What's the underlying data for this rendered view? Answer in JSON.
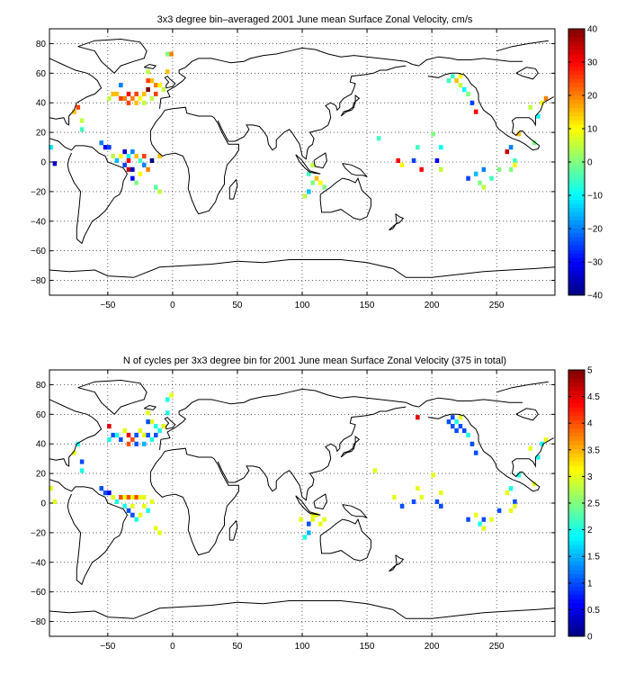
{
  "panels": [
    {
      "title": "3x3 degree bin–averaged 2001 June mean Surface Zonal Velocity, cm/s",
      "chart_data": {
        "type": "heatmap",
        "xlim": [
          -95,
          295
        ],
        "ylim": [
          -90,
          90
        ],
        "xticks": [
          -50,
          0,
          50,
          100,
          150,
          200,
          250
        ],
        "yticks": [
          -80,
          -60,
          -40,
          -20,
          0,
          20,
          40,
          60,
          80
        ],
        "grid": true,
        "grid_style": "dotted",
        "colorbar": {
          "min": -40,
          "max": 40,
          "ticks": [
            -40,
            -30,
            -20,
            -10,
            0,
            10,
            20,
            30,
            40
          ]
        },
        "cells": [
          [
            -94,
            10,
            -12
          ],
          [
            -91,
            -1,
            -35
          ],
          [
            -73,
            37,
            25
          ],
          [
            -76,
            34,
            15
          ],
          [
            -70,
            28,
            5
          ],
          [
            -70,
            22,
            -5
          ],
          [
            -55,
            13,
            -20
          ],
          [
            -52,
            10,
            -30
          ],
          [
            -49,
            10,
            -25
          ],
          [
            -46,
            4,
            5
          ],
          [
            -43,
            1,
            -15
          ],
          [
            -40,
            4,
            10
          ],
          [
            -37,
            7,
            -35
          ],
          [
            -34,
            4,
            -10
          ],
          [
            -34,
            1,
            30
          ],
          [
            -31,
            7,
            -20
          ],
          [
            -28,
            4,
            15
          ],
          [
            -25,
            1,
            -5
          ],
          [
            -22,
            4,
            25
          ],
          [
            -37,
            -2,
            -25
          ],
          [
            -34,
            -5,
            35
          ],
          [
            -31,
            -5,
            -35
          ],
          [
            -31,
            -11,
            -30
          ],
          [
            -28,
            -14,
            0
          ],
          [
            -25,
            -8,
            10
          ],
          [
            -22,
            -2,
            -20
          ],
          [
            -19,
            -5,
            20
          ],
          [
            -16,
            1,
            -40
          ],
          [
            -13,
            -17,
            -3
          ],
          [
            -10,
            -20,
            5
          ],
          [
            -10,
            4,
            15
          ],
          [
            -46,
            46,
            15
          ],
          [
            -49,
            43,
            5
          ],
          [
            -43,
            46,
            15
          ],
          [
            -40,
            43,
            25
          ],
          [
            -37,
            43,
            20
          ],
          [
            -34,
            46,
            30
          ],
          [
            -34,
            40,
            25
          ],
          [
            -31,
            43,
            20
          ],
          [
            -28,
            46,
            25
          ],
          [
            -28,
            40,
            15
          ],
          [
            -25,
            43,
            10
          ],
          [
            -22,
            46,
            15
          ],
          [
            -22,
            40,
            5
          ],
          [
            -19,
            49,
            40
          ],
          [
            -16,
            43,
            5
          ],
          [
            -13,
            46,
            25
          ],
          [
            -13,
            52,
            20
          ],
          [
            -16,
            55,
            15
          ],
          [
            -10,
            52,
            10
          ],
          [
            -7,
            49,
            5
          ],
          [
            -4,
            61,
            15
          ],
          [
            -1,
            73,
            20
          ],
          [
            -4,
            73,
            0
          ],
          [
            -19,
            55,
            25
          ],
          [
            -19,
            61,
            5
          ],
          [
            -40,
            52,
            -20
          ],
          [
            108,
            -2,
            5
          ],
          [
            105,
            -8,
            -5
          ],
          [
            108,
            -14,
            0
          ],
          [
            105,
            -20,
            -15
          ],
          [
            102,
            -23,
            5
          ],
          [
            114,
            -14,
            10
          ],
          [
            117,
            -17,
            0
          ],
          [
            111,
            -11,
            15
          ],
          [
            159,
            16,
            -5
          ],
          [
            174,
            1,
            30
          ],
          [
            177,
            -2,
            10
          ],
          [
            186,
            1,
            -25
          ],
          [
            189,
            10,
            -5
          ],
          [
            192,
            -5,
            30
          ],
          [
            204,
            1,
            -30
          ],
          [
            207,
            10,
            -10
          ],
          [
            201,
            19,
            0
          ],
          [
            207,
            -5,
            5
          ],
          [
            216,
            58,
            -5
          ],
          [
            219,
            55,
            15
          ],
          [
            222,
            52,
            5
          ],
          [
            225,
            49,
            -10
          ],
          [
            228,
            46,
            0
          ],
          [
            222,
            58,
            10
          ],
          [
            213,
            55,
            -5
          ],
          [
            231,
            40,
            -25
          ],
          [
            234,
            34,
            30
          ],
          [
            228,
            -11,
            -25
          ],
          [
            234,
            -8,
            -15
          ],
          [
            237,
            -14,
            0
          ],
          [
            240,
            -5,
            -20
          ],
          [
            240,
            -17,
            5
          ],
          [
            246,
            -11,
            -5
          ],
          [
            252,
            -5,
            0
          ],
          [
            258,
            7,
            35
          ],
          [
            261,
            10,
            -20
          ],
          [
            264,
            1,
            -5
          ],
          [
            264,
            -2,
            10
          ],
          [
            261,
            -5,
            0
          ],
          [
            276,
            37,
            5
          ],
          [
            282,
            31,
            -10
          ],
          [
            285,
            40,
            10
          ],
          [
            288,
            43,
            20
          ],
          [
            279,
            13,
            0
          ],
          [
            267,
            19,
            15
          ]
        ]
      }
    },
    {
      "title": "N of cycles per 3x3 degree bin for 2001 June mean Surface Zonal Velocity (375 in total)",
      "chart_data": {
        "type": "heatmap",
        "xlim": [
          -95,
          295
        ],
        "ylim": [
          -90,
          90
        ],
        "xticks": [
          -50,
          0,
          50,
          100,
          150,
          200,
          250
        ],
        "yticks": [
          -80,
          -60,
          -40,
          -20,
          0,
          20,
          40,
          60,
          80
        ],
        "grid": true,
        "grid_style": "dotted",
        "colorbar": {
          "min": 0,
          "max": 5,
          "ticks": [
            0,
            0.5,
            1,
            1.5,
            2,
            2.5,
            3,
            3.5,
            4,
            4.5,
            5
          ]
        },
        "cells": [
          [
            -94,
            10,
            3
          ],
          [
            -91,
            1,
            3
          ],
          [
            -73,
            40,
            2
          ],
          [
            -76,
            34,
            3
          ],
          [
            -70,
            28,
            1
          ],
          [
            -70,
            22,
            2
          ],
          [
            -55,
            10,
            1
          ],
          [
            -52,
            7,
            1
          ],
          [
            -49,
            7,
            0.5
          ],
          [
            -46,
            4,
            3
          ],
          [
            -43,
            1,
            2
          ],
          [
            -40,
            4,
            4
          ],
          [
            -37,
            4,
            3
          ],
          [
            -34,
            4,
            4
          ],
          [
            -31,
            4,
            3
          ],
          [
            -28,
            4,
            4
          ],
          [
            -25,
            4,
            3
          ],
          [
            -22,
            4,
            3
          ],
          [
            -37,
            -2,
            2
          ],
          [
            -34,
            -5,
            1
          ],
          [
            -31,
            -2,
            3
          ],
          [
            -31,
            -8,
            1
          ],
          [
            -28,
            -11,
            2
          ],
          [
            -25,
            -8,
            3
          ],
          [
            -22,
            -2,
            3
          ],
          [
            -19,
            -5,
            2
          ],
          [
            -16,
            1,
            3
          ],
          [
            -13,
            -17,
            3
          ],
          [
            -10,
            -20,
            3
          ],
          [
            -49,
            43,
            2
          ],
          [
            -46,
            46,
            1
          ],
          [
            -43,
            46,
            2
          ],
          [
            -40,
            43,
            1
          ],
          [
            -37,
            49,
            3
          ],
          [
            -34,
            46,
            4.5
          ],
          [
            -34,
            40,
            4
          ],
          [
            -31,
            43,
            4
          ],
          [
            -28,
            46,
            1
          ],
          [
            -28,
            40,
            1
          ],
          [
            -25,
            49,
            3
          ],
          [
            -22,
            46,
            3
          ],
          [
            -22,
            40,
            1.5
          ],
          [
            -19,
            46,
            1
          ],
          [
            -16,
            43,
            2
          ],
          [
            -13,
            46,
            1
          ],
          [
            -13,
            52,
            2
          ],
          [
            -16,
            55,
            3
          ],
          [
            -10,
            49,
            2
          ],
          [
            -7,
            52,
            3
          ],
          [
            -4,
            61,
            2
          ],
          [
            -1,
            73,
            3
          ],
          [
            -4,
            70,
            2
          ],
          [
            -19,
            55,
            1
          ],
          [
            -19,
            61,
            3
          ],
          [
            -49,
            52,
            4.5
          ],
          [
            108,
            -8,
            3
          ],
          [
            105,
            -14,
            1
          ],
          [
            108,
            -11,
            3
          ],
          [
            105,
            -20,
            1.5
          ],
          [
            102,
            -23,
            2
          ],
          [
            114,
            -14,
            3
          ],
          [
            117,
            -11,
            3
          ],
          [
            111,
            -8,
            3
          ],
          [
            99,
            -11,
            3
          ],
          [
            156,
            22,
            3
          ],
          [
            171,
            4,
            3
          ],
          [
            177,
            -2,
            1
          ],
          [
            186,
            1,
            1
          ],
          [
            189,
            10,
            3
          ],
          [
            192,
            4,
            3
          ],
          [
            204,
            1,
            1
          ],
          [
            207,
            7,
            3
          ],
          [
            201,
            19,
            3
          ],
          [
            207,
            -2,
            1
          ],
          [
            189,
            58,
            4.5
          ],
          [
            216,
            58,
            1
          ],
          [
            219,
            55,
            2
          ],
          [
            222,
            52,
            1
          ],
          [
            225,
            49,
            1
          ],
          [
            228,
            46,
            2
          ],
          [
            222,
            58,
            3
          ],
          [
            213,
            55,
            1
          ],
          [
            231,
            40,
            1
          ],
          [
            234,
            34,
            1
          ],
          [
            216,
            52,
            1
          ],
          [
            219,
            49,
            1
          ],
          [
            228,
            -11,
            1
          ],
          [
            234,
            -8,
            3
          ],
          [
            237,
            -14,
            2
          ],
          [
            240,
            -11,
            1
          ],
          [
            240,
            -17,
            3
          ],
          [
            246,
            -11,
            3
          ],
          [
            252,
            -5,
            1
          ],
          [
            258,
            7,
            3
          ],
          [
            261,
            10,
            2
          ],
          [
            264,
            1,
            1
          ],
          [
            264,
            -2,
            3
          ],
          [
            261,
            -5,
            3
          ],
          [
            276,
            37,
            3
          ],
          [
            282,
            31,
            2
          ],
          [
            285,
            40,
            2
          ],
          [
            288,
            43,
            3
          ],
          [
            279,
            13,
            3
          ],
          [
            267,
            19,
            2
          ]
        ]
      }
    }
  ]
}
